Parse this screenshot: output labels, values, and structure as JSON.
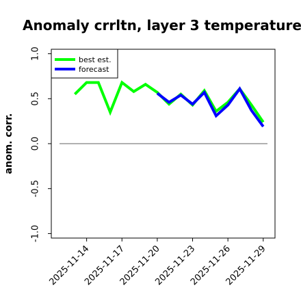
{
  "chart_data": {
    "type": "line",
    "title": "Anomaly crrltn, layer 3 temperature",
    "xlabel": "",
    "ylabel": "anom. corr.",
    "ylim": [
      -1.05,
      1.05
    ],
    "yticks": [
      "-1.0",
      "-0.5",
      "0.0",
      "0.5",
      "1.0"
    ],
    "x_ticks": [
      {
        "label": "2025-11-14",
        "color": "#000000"
      },
      {
        "label": "2025-11-17",
        "color": "#000000"
      },
      {
        "label": "2025-11-20",
        "color": "#228b22"
      },
      {
        "label": "2025-11-23",
        "color": "#000000"
      },
      {
        "label": "2025-11-26",
        "color": "#000000"
      },
      {
        "label": "2025-11-29",
        "color": "#000000"
      }
    ],
    "x": [
      "2025-11-13",
      "2025-11-14",
      "2025-11-15",
      "2025-11-16",
      "2025-11-17",
      "2025-11-18",
      "2025-11-19",
      "2025-11-20",
      "2025-11-21",
      "2025-11-22",
      "2025-11-23",
      "2025-11-24",
      "2025-11-25",
      "2025-11-26",
      "2025-11-27",
      "2025-11-28",
      "2025-11-29"
    ],
    "xlim": [
      "2025-11-11",
      "2025-11-30"
    ],
    "series": [
      {
        "name": "best est.",
        "color": "#00ff00",
        "values": [
          0.55,
          0.68,
          0.68,
          0.35,
          0.68,
          0.58,
          0.66,
          0.57,
          0.44,
          0.55,
          0.43,
          0.59,
          0.36,
          0.46,
          0.61,
          0.43,
          0.24
        ]
      },
      {
        "name": "forecast",
        "color": "#0000ff",
        "values": [
          null,
          null,
          null,
          null,
          null,
          null,
          null,
          0.56,
          0.46,
          0.54,
          0.44,
          0.57,
          0.31,
          0.43,
          0.61,
          0.37,
          0.19
        ]
      }
    ],
    "reference_line": {
      "y": 0.0,
      "color": "#808080"
    },
    "grid": false,
    "legend_position": "top-left"
  }
}
